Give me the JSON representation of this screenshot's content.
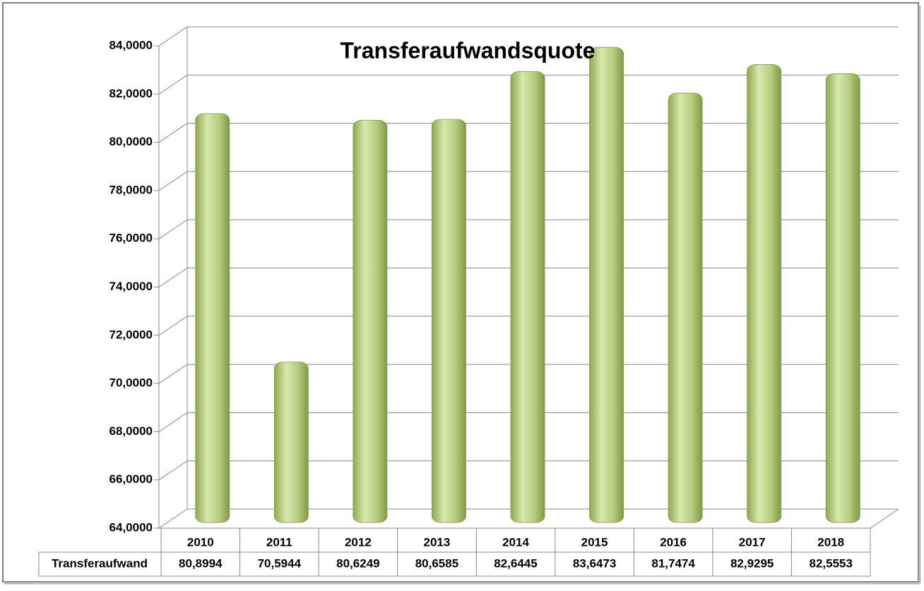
{
  "chart_data": {
    "type": "bar",
    "title": "Transferaufwandsquote",
    "categories": [
      "2010",
      "2011",
      "2012",
      "2013",
      "2014",
      "2015",
      "2016",
      "2017",
      "2018"
    ],
    "series": [
      {
        "name": "Transferaufwand",
        "color": "#b5cc7e",
        "values": [
          80.8994,
          70.5944,
          80.6249,
          80.6585,
          82.6445,
          83.6473,
          81.7474,
          82.9295,
          82.5553
        ],
        "value_labels": [
          "80,8994",
          "70,5944",
          "80,6249",
          "80,6585",
          "82,6445",
          "83,6473",
          "81,7474",
          "82,9295",
          "82,5553"
        ]
      }
    ],
    "ylim": [
      64,
      84
    ],
    "yticks": [
      {
        "value": 64,
        "label": "64,0000"
      },
      {
        "value": 66,
        "label": "66,0000"
      },
      {
        "value": 68,
        "label": "68,0000"
      },
      {
        "value": 70,
        "label": "70,0000"
      },
      {
        "value": 72,
        "label": "72,0000"
      },
      {
        "value": 74,
        "label": "74,0000"
      },
      {
        "value": 76,
        "label": "76,0000"
      },
      {
        "value": 78,
        "label": "78,0000"
      },
      {
        "value": 80,
        "label": "80,0000"
      },
      {
        "value": 82,
        "label": "82,0000"
      },
      {
        "value": 84,
        "label": "84,0000"
      }
    ],
    "grid": true
  }
}
